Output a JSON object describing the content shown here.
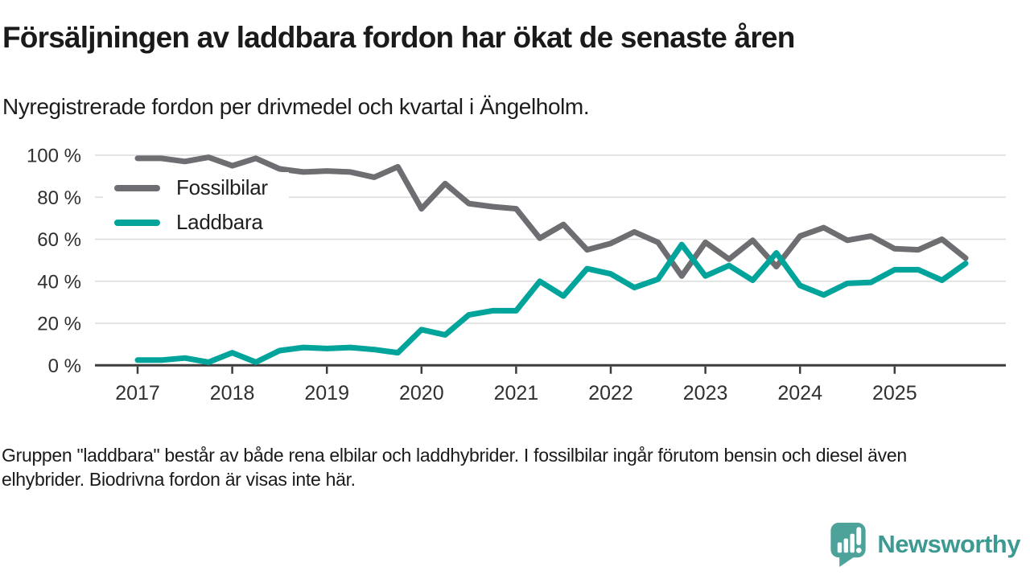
{
  "header": {
    "title": "Försäljningen av laddbara fordon har ökat de senaste åren",
    "subtitle": "Nyregistrerade fordon per drivmedel och kvartal i Ängelholm."
  },
  "chart_data": {
    "type": "line",
    "x_range": "2017 Q1 till 2025 Q4, kvartalsvis",
    "quarters": [
      "2017Q1",
      "2017Q2",
      "2017Q3",
      "2017Q4",
      "2018Q1",
      "2018Q2",
      "2018Q3",
      "2018Q4",
      "2019Q1",
      "2019Q2",
      "2019Q3",
      "2019Q4",
      "2020Q1",
      "2020Q2",
      "2020Q3",
      "2020Q4",
      "2021Q1",
      "2021Q2",
      "2021Q3",
      "2021Q4",
      "2022Q1",
      "2022Q2",
      "2022Q3",
      "2022Q4",
      "2023Q1",
      "2023Q2",
      "2023Q3",
      "2023Q4",
      "2024Q1",
      "2024Q2",
      "2024Q3",
      "2024Q4",
      "2025Q1",
      "2025Q2",
      "2025Q3",
      "2025Q4"
    ],
    "x_tick_labels": [
      "2017",
      "2018",
      "2019",
      "2020",
      "2021",
      "2022",
      "2023",
      "2024",
      "2025"
    ],
    "y_tick_labels": [
      "0 %",
      "20 %",
      "40 %",
      "60 %",
      "80 %",
      "100 %"
    ],
    "y_tick_values": [
      0,
      20,
      40,
      60,
      80,
      100
    ],
    "ylim": [
      0,
      100
    ],
    "unit": "%",
    "grid": "horizontal",
    "legend_position": "top-left-inside",
    "series": [
      {
        "name": "Fossilbilar",
        "color": "#6e6e72",
        "values": [
          98.5,
          98.5,
          97,
          99,
          95,
          98.5,
          93.5,
          92,
          92.5,
          92,
          89.5,
          94.5,
          74.5,
          86.5,
          77,
          75.5,
          74.5,
          60.5,
          67,
          55,
          58,
          63.5,
          58.5,
          42.5,
          58.5,
          50.5,
          59.5,
          47,
          61.5,
          65.5,
          59.5,
          61.5,
          55.5,
          55,
          60,
          51
        ]
      },
      {
        "name": "Laddbara",
        "color": "#00a49b",
        "values": [
          2.5,
          2.5,
          3.5,
          1.5,
          6,
          1.5,
          7,
          8.5,
          8,
          8.5,
          7.5,
          6,
          17,
          14.5,
          24,
          26,
          26,
          40,
          33,
          46,
          43.5,
          37,
          41,
          57.5,
          42.5,
          47.5,
          40.5,
          53.5,
          38,
          33.5,
          39,
          39.5,
          45.5,
          45.5,
          40.5,
          48.5
        ]
      }
    ],
    "axis_color": "#3c3c3c",
    "gridline_color": "#dcdcdc",
    "tick_label_color": "#303030"
  },
  "footer": {
    "line1": "Gruppen \"laddbara\" består av både rena elbilar och laddhybrider. I fossilbilar ingår förutom bensin och diesel även",
    "line2": "elhybrider. Biodrivna fordon är visas inte här."
  },
  "logo": {
    "text": "Newsworthy",
    "icon": "newsworthy-speech-bubble-chart-icon",
    "icon_color": "#4da29a",
    "text_color": "#3d9a92"
  }
}
